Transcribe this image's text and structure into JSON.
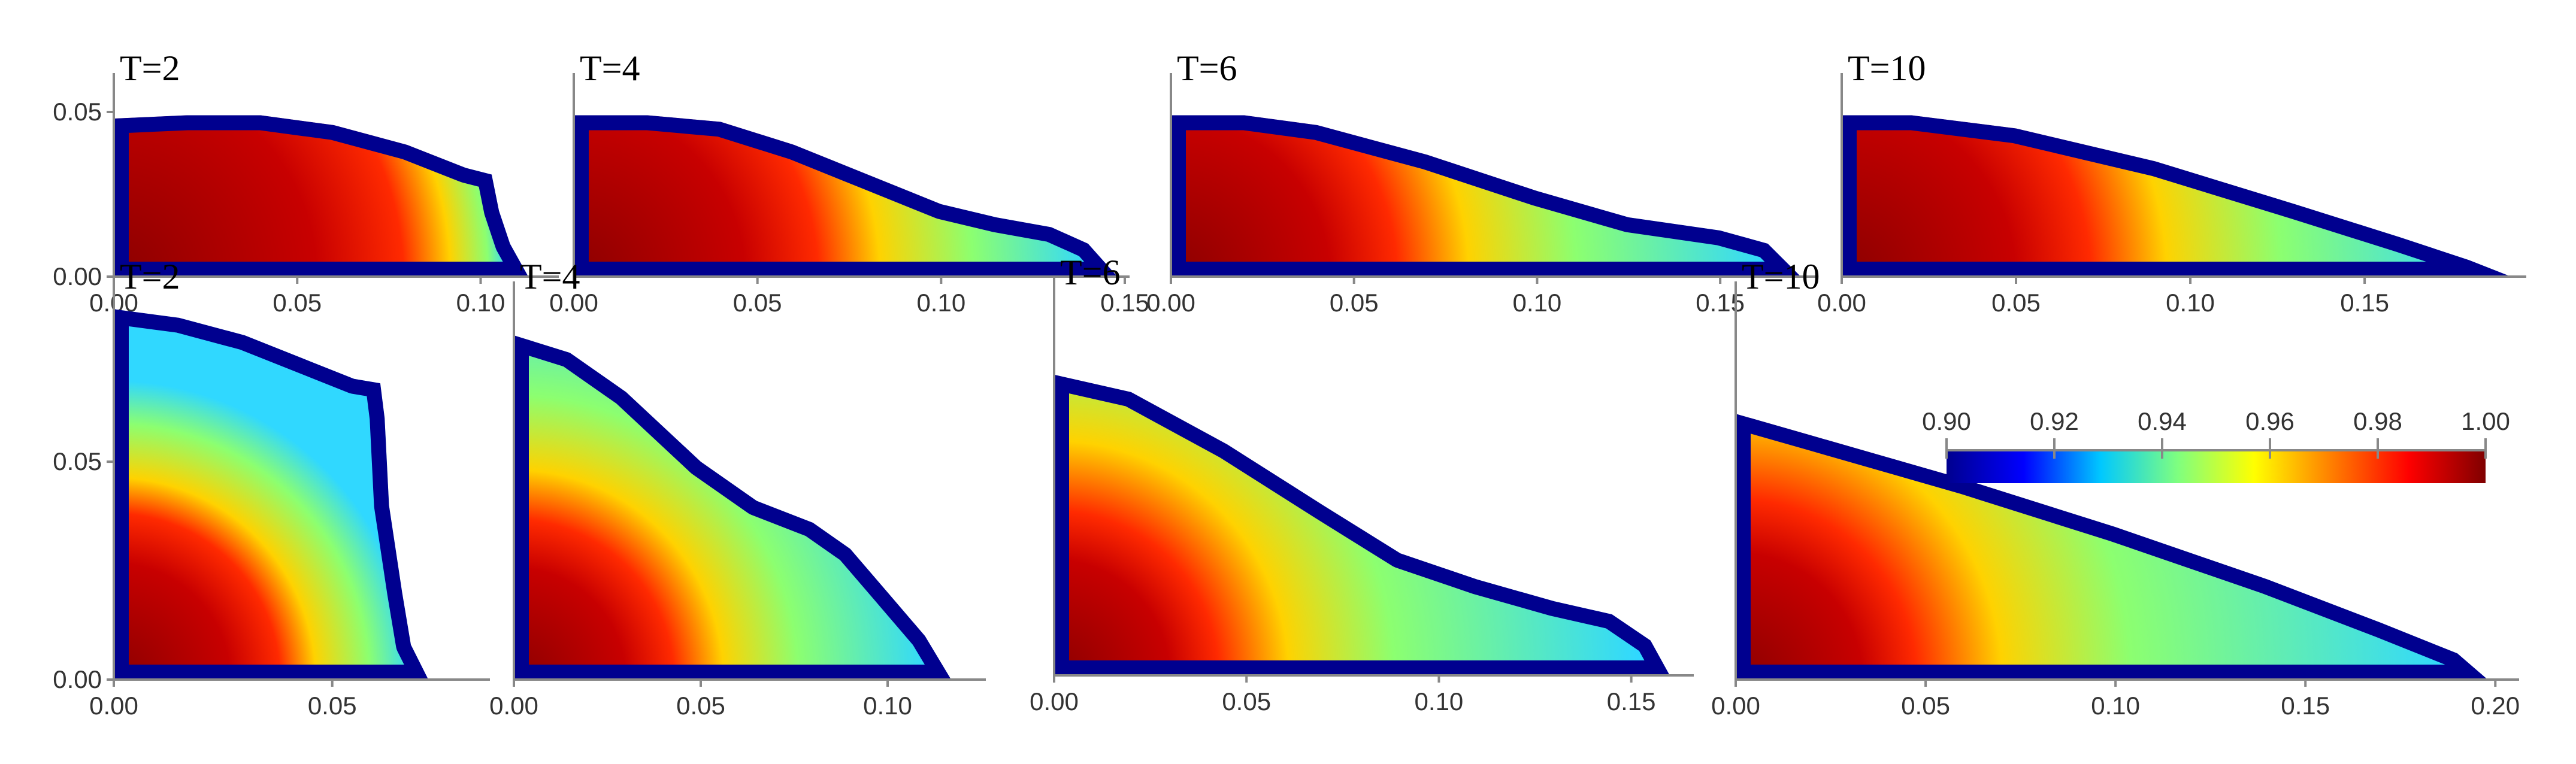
{
  "chart_data": [
    {
      "type": "heatmap",
      "title": "T=2",
      "x_ticks": [
        "0.00",
        "0.05",
        "0.10"
      ],
      "y_ticks": [
        "0.00",
        "0.05"
      ],
      "xlim": [
        0,
        0.12
      ],
      "ylim": [
        0,
        0.06
      ],
      "outline": [
        [
          0,
          0.048
        ],
        [
          0.02,
          0.049
        ],
        [
          0.04,
          0.049
        ],
        [
          0.06,
          0.046
        ],
        [
          0.08,
          0.04
        ],
        [
          0.096,
          0.033
        ],
        [
          0.103,
          0.031
        ],
        [
          0.105,
          0.02
        ],
        [
          0.108,
          0.01
        ],
        [
          0.113,
          0
        ]
      ],
      "core_x": 0.083
    },
    {
      "type": "heatmap",
      "title": "T=4",
      "x_ticks": [
        "0.00",
        "0.05",
        "0.10",
        "0.15"
      ],
      "y_ticks": [],
      "xlim": [
        0,
        0.15
      ],
      "ylim": [
        0,
        0.06
      ],
      "outline": [
        [
          0,
          0.049
        ],
        [
          0.02,
          0.049
        ],
        [
          0.04,
          0.047
        ],
        [
          0.06,
          0.04
        ],
        [
          0.08,
          0.031
        ],
        [
          0.1,
          0.022
        ],
        [
          0.115,
          0.018
        ],
        [
          0.13,
          0.015
        ],
        [
          0.14,
          0.01
        ],
        [
          0.148,
          0
        ]
      ],
      "core_x": 0.07
    },
    {
      "type": "heatmap",
      "title": "T=6",
      "x_ticks": [
        "0.00",
        "0.05",
        "0.10",
        "0.15"
      ],
      "y_ticks": [],
      "xlim": [
        0,
        0.175
      ],
      "ylim": [
        0,
        0.06
      ],
      "outline": [
        [
          0,
          0.049
        ],
        [
          0.02,
          0.049
        ],
        [
          0.04,
          0.046
        ],
        [
          0.07,
          0.037
        ],
        [
          0.1,
          0.026
        ],
        [
          0.125,
          0.018
        ],
        [
          0.15,
          0.014
        ],
        [
          0.163,
          0.01
        ],
        [
          0.172,
          0
        ]
      ],
      "core_x": 0.065
    },
    {
      "type": "heatmap",
      "title": "T=10",
      "x_ticks": [
        "0.00",
        "0.05",
        "0.10",
        "0.15"
      ],
      "y_ticks": [],
      "xlim": [
        0,
        0.195
      ],
      "ylim": [
        0,
        0.06
      ],
      "outline": [
        [
          0,
          0.049
        ],
        [
          0.02,
          0.049
        ],
        [
          0.05,
          0.045
        ],
        [
          0.09,
          0.035
        ],
        [
          0.13,
          0.022
        ],
        [
          0.16,
          0.012
        ],
        [
          0.18,
          0.005
        ],
        [
          0.192,
          0
        ]
      ],
      "core_x": 0.075
    },
    {
      "type": "heatmap",
      "title": "T=2",
      "x_ticks": [
        "0.00",
        "0.05"
      ],
      "y_ticks": [
        "0.00",
        "0.05"
      ],
      "xlim": [
        0,
        0.085
      ],
      "ylim": [
        0,
        0.09
      ],
      "outline": [
        [
          0,
          0.085
        ],
        [
          0.015,
          0.083
        ],
        [
          0.03,
          0.079
        ],
        [
          0.045,
          0.073
        ],
        [
          0.055,
          0.069
        ],
        [
          0.061,
          0.068
        ],
        [
          0.062,
          0.06
        ],
        [
          0.063,
          0.04
        ],
        [
          0.066,
          0.02
        ],
        [
          0.068,
          0.008
        ],
        [
          0.072,
          0
        ]
      ],
      "core_x": 0.04
    },
    {
      "type": "heatmap",
      "title": "T=4",
      "x_ticks": [
        "0.00",
        "0.05",
        "0.10"
      ],
      "y_ticks": [],
      "xlim": [
        0,
        0.125
      ],
      "ylim": [
        0,
        0.09
      ],
      "outline": [
        [
          0,
          0.079
        ],
        [
          0.015,
          0.075
        ],
        [
          0.03,
          0.066
        ],
        [
          0.05,
          0.05
        ],
        [
          0.065,
          0.041
        ],
        [
          0.08,
          0.036
        ],
        [
          0.09,
          0.03
        ],
        [
          0.1,
          0.02
        ],
        [
          0.11,
          0.01
        ],
        [
          0.117,
          0
        ]
      ],
      "core_x": 0.045
    },
    {
      "type": "heatmap",
      "title": "T=6",
      "x_ticks": [
        "0.00",
        "0.05",
        "0.10",
        "0.15"
      ],
      "y_ticks": [],
      "xlim": [
        0,
        0.165
      ],
      "ylim": [
        0,
        0.09
      ],
      "outline": [
        [
          0,
          0.069
        ],
        [
          0.02,
          0.065
        ],
        [
          0.045,
          0.053
        ],
        [
          0.07,
          0.039
        ],
        [
          0.09,
          0.028
        ],
        [
          0.11,
          0.022
        ],
        [
          0.13,
          0.017
        ],
        [
          0.145,
          0.014
        ],
        [
          0.155,
          0.008
        ],
        [
          0.16,
          0
        ]
      ],
      "core_x": 0.045
    },
    {
      "type": "heatmap",
      "title": "T=10",
      "x_ticks": [
        "0.00",
        "0.05",
        "0.10",
        "0.15",
        "0.20"
      ],
      "y_ticks": [],
      "xlim": [
        0,
        0.205
      ],
      "ylim": [
        0,
        0.09
      ],
      "outline": [
        [
          0,
          0.061
        ],
        [
          0.02,
          0.056
        ],
        [
          0.06,
          0.046
        ],
        [
          0.1,
          0.035
        ],
        [
          0.14,
          0.023
        ],
        [
          0.17,
          0.013
        ],
        [
          0.19,
          0.006
        ],
        [
          0.198,
          0
        ]
      ],
      "core_x": 0.05
    }
  ],
  "colorbar": {
    "min": 0.9,
    "max": 1.0,
    "ticks": [
      "0.90",
      "0.92",
      "0.94",
      "0.96",
      "0.98",
      "1.00"
    ],
    "stops": [
      "#00008f",
      "#0000ff",
      "#00c8ff",
      "#7fff7f",
      "#ffff00",
      "#ff7f00",
      "#ff0000",
      "#800000"
    ]
  }
}
